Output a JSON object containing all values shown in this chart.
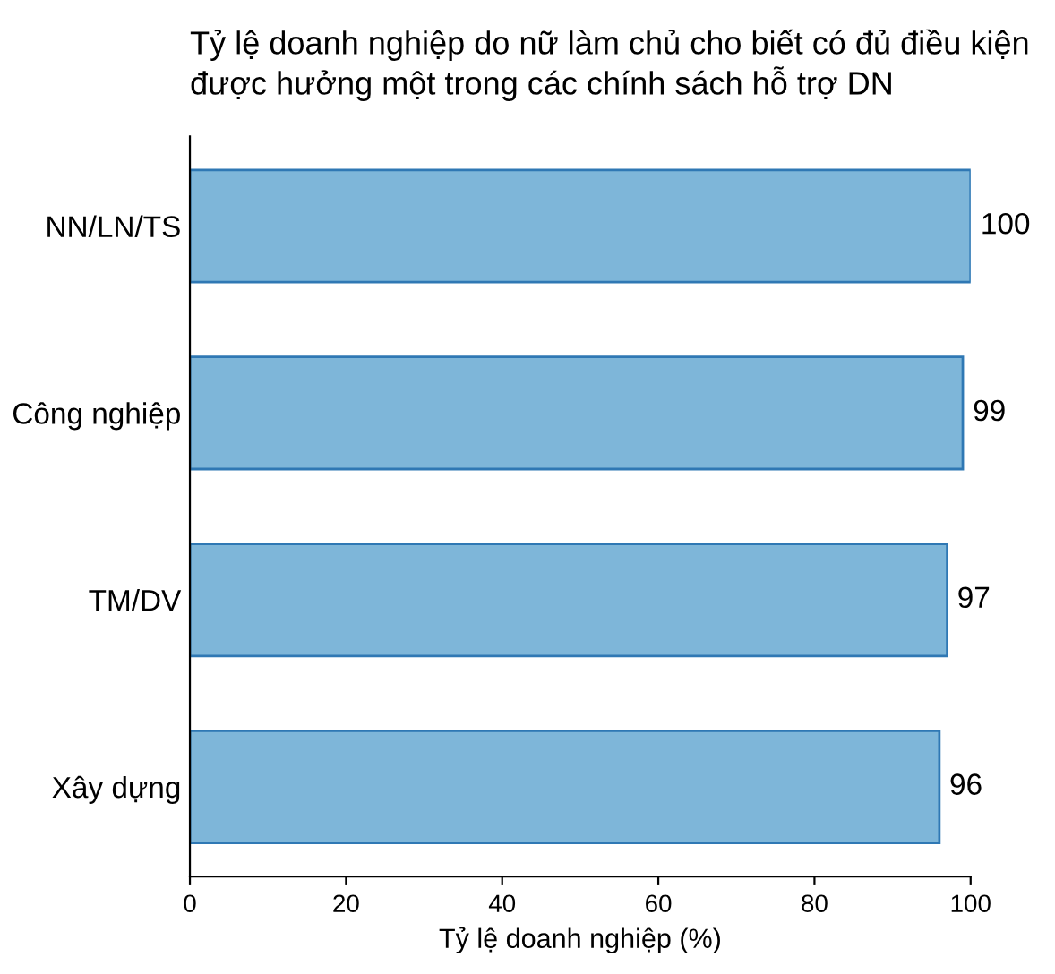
{
  "chart_data": {
    "type": "bar",
    "orientation": "horizontal",
    "title": "Tỷ lệ doanh nghiệp do nữ làm chủ cho biết có đủ điều kiện\nđược hưởng một trong các chính sách hỗ trợ DN",
    "xlabel": "Tỷ lệ doanh nghiệp (%)",
    "categories": [
      "NN/LN/TS",
      "Công nghiệp",
      "TM/DV",
      "Xây dựng"
    ],
    "values": [
      100,
      99,
      97,
      96
    ],
    "color": "#7eb6d9",
    "data_labels": true,
    "xlim": [
      0,
      100
    ],
    "xticks": [
      0,
      20,
      40,
      60,
      80,
      100
    ],
    "grid": false
  }
}
